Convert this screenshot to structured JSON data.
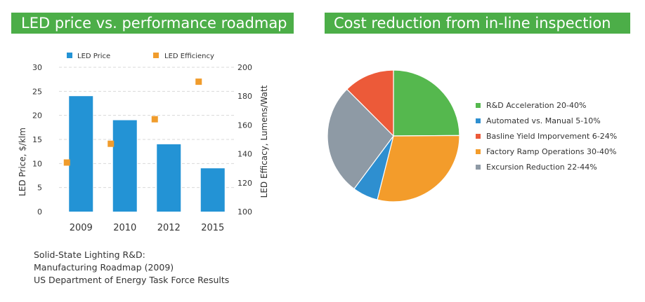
{
  "chart_data": [
    {
      "type": "bar",
      "title": "LED price vs. performance roadmap",
      "categories": [
        "2009",
        "2010",
        "2012",
        "2015"
      ],
      "series": [
        {
          "name": "LED Price",
          "kind": "bar",
          "axis": "left",
          "color": "#2393d5",
          "values": [
            24,
            19,
            14,
            9
          ]
        },
        {
          "name": "LED Efficiency",
          "kind": "marker",
          "axis": "right",
          "color": "#f09c2c",
          "values": [
            134,
            147,
            164,
            190
          ]
        }
      ],
      "ylabel": "LED Price, $/klm",
      "ylim": [
        0,
        30
      ],
      "yticks": [
        "0",
        "5",
        "10",
        "15",
        "20",
        "25",
        "30"
      ],
      "y2label": "LED Efficacy, Lumens/Watt",
      "y2lim": [
        100,
        200
      ],
      "y2ticks": [
        "100",
        "120",
        "140",
        "160",
        "180",
        "200"
      ],
      "grid": true,
      "legend": "top"
    },
    {
      "type": "pie",
      "title": "Cost reduction from in-line inspection",
      "slices": [
        {
          "label": "R&D Acceleration 20-40%",
          "value": 30,
          "color": "#55b84e"
        },
        {
          "label": "Automated vs. Manual 5-10%",
          "value": 7.5,
          "color": "#2e8fd0"
        },
        {
          "label": "Basline Yield Imporvement 6-24%",
          "value": 15,
          "color": "#ec5a39"
        },
        {
          "label": "Factory Ramp Operations 30-40%",
          "value": 35,
          "color": "#f39c2b"
        },
        {
          "label": "Excursion Reduction 22-44%",
          "value": 33,
          "color": "#8e9aa5"
        }
      ],
      "draw_order": [
        0,
        3,
        1,
        4,
        2
      ],
      "legend_order": [
        0,
        1,
        2,
        3,
        4
      ],
      "legend": "right"
    }
  ],
  "source_note": [
    "Solid-State Lighting R&D:",
    "Manufacturing Roadmap (2009)",
    "US Department of Energy Task Force Results"
  ]
}
